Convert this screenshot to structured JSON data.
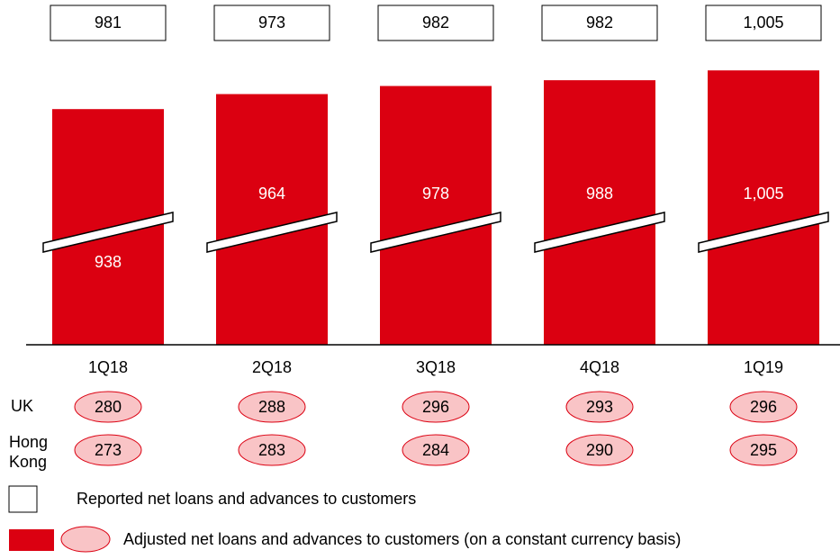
{
  "chart_data": {
    "type": "bar",
    "categories": [
      "1Q18",
      "2Q18",
      "3Q18",
      "4Q18",
      "1Q19"
    ],
    "ylim": [
      530,
      1010
    ],
    "series": [
      {
        "name": "Adjusted net loans and advances to customers (on a constant currency basis)",
        "color": "#db0011",
        "values": [
          938,
          964,
          978,
          988,
          1005
        ],
        "value_labels": [
          "938",
          "964",
          "978",
          "988",
          "1,005"
        ]
      },
      {
        "name": "Reported net loans and advances to customers",
        "color": "#ffffff",
        "values": [
          981,
          973,
          982,
          982,
          1005
        ],
        "value_labels": [
          "981",
          "973",
          "982",
          "982",
          "1,005"
        ]
      }
    ],
    "rows": [
      {
        "name": "UK",
        "values": [
          280,
          288,
          296,
          293,
          296
        ]
      },
      {
        "name": "Hong Kong",
        "values": [
          273,
          283,
          284,
          290,
          295
        ]
      }
    ],
    "oval_color": "#f9c4c6"
  }
}
